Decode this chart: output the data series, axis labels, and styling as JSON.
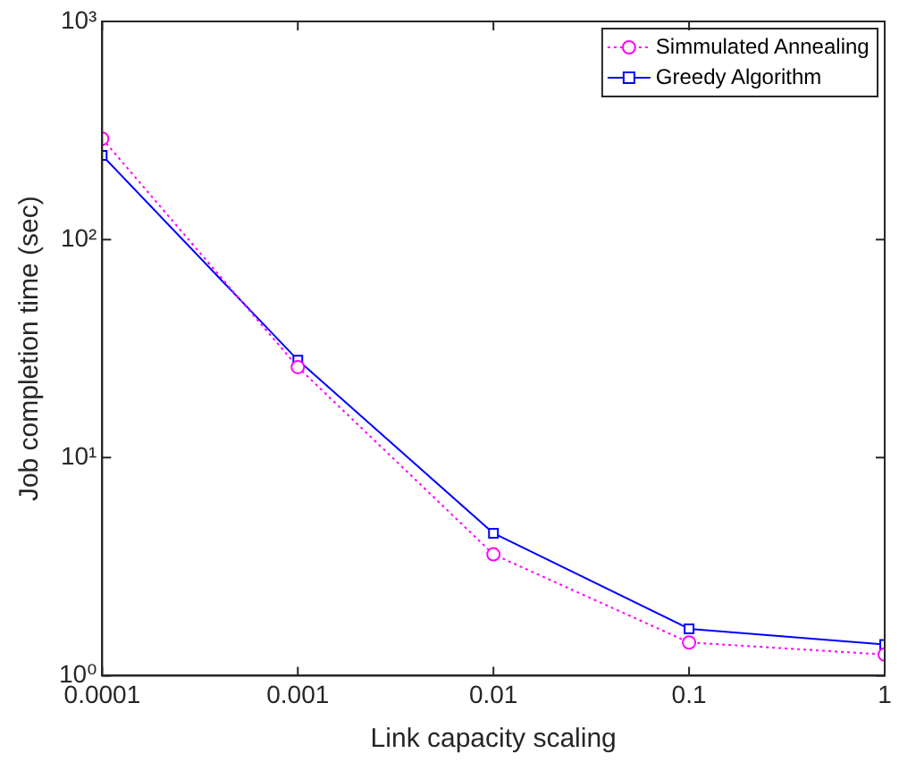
{
  "chart_data": {
    "type": "line",
    "xlabel": "Link capacity scaling",
    "ylabel": "Job completion time (sec)",
    "x": [
      0.0001,
      0.001,
      0.01,
      0.1,
      1
    ],
    "series": [
      {
        "name": "Simmulated Annealing",
        "color": "#ff00ff",
        "marker": "circle",
        "line_style": "dotted",
        "values": [
          290,
          26,
          3.6,
          1.42,
          1.25
        ]
      },
      {
        "name": "Greedy Algorithm",
        "color": "#0000ff",
        "marker": "square",
        "line_style": "solid",
        "values": [
          243,
          28,
          4.5,
          1.64,
          1.39
        ]
      }
    ],
    "log": "xy",
    "xlim": [
      0.0001,
      1
    ],
    "ylim": [
      1,
      1000
    ],
    "xticks": [
      0.0001,
      0.001,
      0.01,
      0.1,
      1
    ],
    "yticks": [
      {
        "value": 1,
        "label": "10⁰"
      },
      {
        "value": 10,
        "label": "10¹"
      },
      {
        "value": 100,
        "label": "10²"
      },
      {
        "value": 1000,
        "label": "10³"
      }
    ],
    "grid": false,
    "legend": "top right"
  }
}
